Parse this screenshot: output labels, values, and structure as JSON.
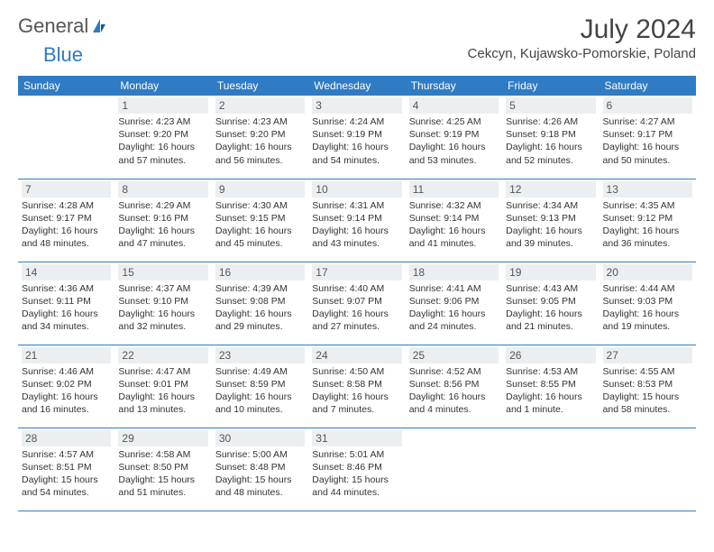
{
  "logo": {
    "text_general": "General",
    "text_blue": "Blue"
  },
  "header": {
    "month_title": "July 2024",
    "location": "Cekcyn, Kujawsko-Pomorskie, Poland"
  },
  "colors": {
    "accent": "#2f7bc4",
    "day_header_bg": "#eceff1",
    "text": "#333333",
    "background": "#ffffff"
  },
  "day_labels": [
    "Sunday",
    "Monday",
    "Tuesday",
    "Wednesday",
    "Thursday",
    "Friday",
    "Saturday"
  ],
  "weeks": [
    [
      null,
      {
        "n": "1",
        "sr": "Sunrise: 4:23 AM",
        "ss": "Sunset: 9:20 PM",
        "d1": "Daylight: 16 hours",
        "d2": "and 57 minutes."
      },
      {
        "n": "2",
        "sr": "Sunrise: 4:23 AM",
        "ss": "Sunset: 9:20 PM",
        "d1": "Daylight: 16 hours",
        "d2": "and 56 minutes."
      },
      {
        "n": "3",
        "sr": "Sunrise: 4:24 AM",
        "ss": "Sunset: 9:19 PM",
        "d1": "Daylight: 16 hours",
        "d2": "and 54 minutes."
      },
      {
        "n": "4",
        "sr": "Sunrise: 4:25 AM",
        "ss": "Sunset: 9:19 PM",
        "d1": "Daylight: 16 hours",
        "d2": "and 53 minutes."
      },
      {
        "n": "5",
        "sr": "Sunrise: 4:26 AM",
        "ss": "Sunset: 9:18 PM",
        "d1": "Daylight: 16 hours",
        "d2": "and 52 minutes."
      },
      {
        "n": "6",
        "sr": "Sunrise: 4:27 AM",
        "ss": "Sunset: 9:17 PM",
        "d1": "Daylight: 16 hours",
        "d2": "and 50 minutes."
      }
    ],
    [
      {
        "n": "7",
        "sr": "Sunrise: 4:28 AM",
        "ss": "Sunset: 9:17 PM",
        "d1": "Daylight: 16 hours",
        "d2": "and 48 minutes."
      },
      {
        "n": "8",
        "sr": "Sunrise: 4:29 AM",
        "ss": "Sunset: 9:16 PM",
        "d1": "Daylight: 16 hours",
        "d2": "and 47 minutes."
      },
      {
        "n": "9",
        "sr": "Sunrise: 4:30 AM",
        "ss": "Sunset: 9:15 PM",
        "d1": "Daylight: 16 hours",
        "d2": "and 45 minutes."
      },
      {
        "n": "10",
        "sr": "Sunrise: 4:31 AM",
        "ss": "Sunset: 9:14 PM",
        "d1": "Daylight: 16 hours",
        "d2": "and 43 minutes."
      },
      {
        "n": "11",
        "sr": "Sunrise: 4:32 AM",
        "ss": "Sunset: 9:14 PM",
        "d1": "Daylight: 16 hours",
        "d2": "and 41 minutes."
      },
      {
        "n": "12",
        "sr": "Sunrise: 4:34 AM",
        "ss": "Sunset: 9:13 PM",
        "d1": "Daylight: 16 hours",
        "d2": "and 39 minutes."
      },
      {
        "n": "13",
        "sr": "Sunrise: 4:35 AM",
        "ss": "Sunset: 9:12 PM",
        "d1": "Daylight: 16 hours",
        "d2": "and 36 minutes."
      }
    ],
    [
      {
        "n": "14",
        "sr": "Sunrise: 4:36 AM",
        "ss": "Sunset: 9:11 PM",
        "d1": "Daylight: 16 hours",
        "d2": "and 34 minutes."
      },
      {
        "n": "15",
        "sr": "Sunrise: 4:37 AM",
        "ss": "Sunset: 9:10 PM",
        "d1": "Daylight: 16 hours",
        "d2": "and 32 minutes."
      },
      {
        "n": "16",
        "sr": "Sunrise: 4:39 AM",
        "ss": "Sunset: 9:08 PM",
        "d1": "Daylight: 16 hours",
        "d2": "and 29 minutes."
      },
      {
        "n": "17",
        "sr": "Sunrise: 4:40 AM",
        "ss": "Sunset: 9:07 PM",
        "d1": "Daylight: 16 hours",
        "d2": "and 27 minutes."
      },
      {
        "n": "18",
        "sr": "Sunrise: 4:41 AM",
        "ss": "Sunset: 9:06 PM",
        "d1": "Daylight: 16 hours",
        "d2": "and 24 minutes."
      },
      {
        "n": "19",
        "sr": "Sunrise: 4:43 AM",
        "ss": "Sunset: 9:05 PM",
        "d1": "Daylight: 16 hours",
        "d2": "and 21 minutes."
      },
      {
        "n": "20",
        "sr": "Sunrise: 4:44 AM",
        "ss": "Sunset: 9:03 PM",
        "d1": "Daylight: 16 hours",
        "d2": "and 19 minutes."
      }
    ],
    [
      {
        "n": "21",
        "sr": "Sunrise: 4:46 AM",
        "ss": "Sunset: 9:02 PM",
        "d1": "Daylight: 16 hours",
        "d2": "and 16 minutes."
      },
      {
        "n": "22",
        "sr": "Sunrise: 4:47 AM",
        "ss": "Sunset: 9:01 PM",
        "d1": "Daylight: 16 hours",
        "d2": "and 13 minutes."
      },
      {
        "n": "23",
        "sr": "Sunrise: 4:49 AM",
        "ss": "Sunset: 8:59 PM",
        "d1": "Daylight: 16 hours",
        "d2": "and 10 minutes."
      },
      {
        "n": "24",
        "sr": "Sunrise: 4:50 AM",
        "ss": "Sunset: 8:58 PM",
        "d1": "Daylight: 16 hours",
        "d2": "and 7 minutes."
      },
      {
        "n": "25",
        "sr": "Sunrise: 4:52 AM",
        "ss": "Sunset: 8:56 PM",
        "d1": "Daylight: 16 hours",
        "d2": "and 4 minutes."
      },
      {
        "n": "26",
        "sr": "Sunrise: 4:53 AM",
        "ss": "Sunset: 8:55 PM",
        "d1": "Daylight: 16 hours",
        "d2": "and 1 minute."
      },
      {
        "n": "27",
        "sr": "Sunrise: 4:55 AM",
        "ss": "Sunset: 8:53 PM",
        "d1": "Daylight: 15 hours",
        "d2": "and 58 minutes."
      }
    ],
    [
      {
        "n": "28",
        "sr": "Sunrise: 4:57 AM",
        "ss": "Sunset: 8:51 PM",
        "d1": "Daylight: 15 hours",
        "d2": "and 54 minutes."
      },
      {
        "n": "29",
        "sr": "Sunrise: 4:58 AM",
        "ss": "Sunset: 8:50 PM",
        "d1": "Daylight: 15 hours",
        "d2": "and 51 minutes."
      },
      {
        "n": "30",
        "sr": "Sunrise: 5:00 AM",
        "ss": "Sunset: 8:48 PM",
        "d1": "Daylight: 15 hours",
        "d2": "and 48 minutes."
      },
      {
        "n": "31",
        "sr": "Sunrise: 5:01 AM",
        "ss": "Sunset: 8:46 PM",
        "d1": "Daylight: 15 hours",
        "d2": "and 44 minutes."
      },
      null,
      null,
      null
    ]
  ]
}
